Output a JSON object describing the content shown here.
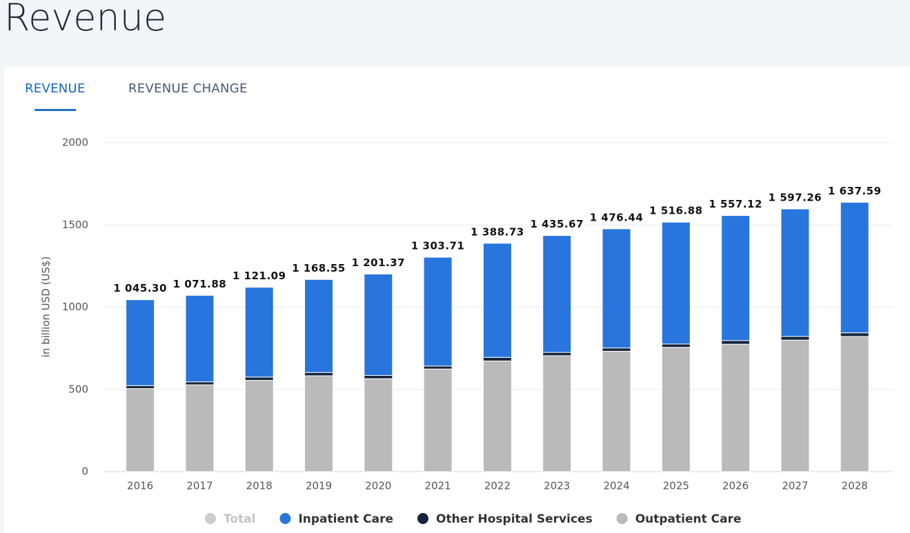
{
  "header": {
    "title": "Revenue"
  },
  "tabs": [
    "REVENUE",
    "REVENUE CHANGE"
  ],
  "chart_data": {
    "type": "bar",
    "stacked": true,
    "y_label": "in billion USD (US$)",
    "categories": [
      "2016",
      "2017",
      "2018",
      "2019",
      "2020",
      "2021",
      "2022",
      "2023",
      "2024",
      "2025",
      "2026",
      "2027",
      "2028"
    ],
    "series": [
      {
        "name": "Total",
        "color": "#cccccc",
        "visible": false,
        "values": [
          1045.3,
          1071.88,
          1121.09,
          1168.55,
          1201.37,
          1303.71,
          1388.73,
          1435.67,
          1476.44,
          1516.88,
          1557.12,
          1597.26,
          1637.59
        ],
        "value_labels": [
          "1 045.30",
          "1 071.88",
          "1 121.09",
          "1 168.55",
          "1 201.37",
          "1 303.71",
          "1 388.73",
          "1 435.67",
          "1 476.44",
          "1 516.88",
          "1 557.12",
          "1 597.26",
          "1 637.59"
        ]
      },
      {
        "name": "Inpatient Care",
        "color": "#2876dd",
        "values": [
          522.3,
          525.88,
          546.09,
          565.55,
          616.37,
          661.71,
          693.73,
          710.67,
          724.44,
          740.88,
          760.12,
          775.26,
          793.59
        ]
      },
      {
        "name": "Other Hospital Services",
        "color": "#14253d",
        "values": [
          18,
          18,
          20,
          20,
          20,
          18,
          22,
          20,
          20,
          20,
          22,
          22,
          22
        ]
      },
      {
        "name": "Outpatient Care",
        "color": "#bababa",
        "values": [
          505,
          528,
          555,
          583,
          565,
          624,
          673,
          705,
          732,
          756,
          775,
          800,
          822
        ]
      }
    ],
    "ylim": [
      0,
      2000
    ],
    "yticks": [
      0,
      500,
      1000,
      1500,
      2000
    ],
    "grid": true
  }
}
